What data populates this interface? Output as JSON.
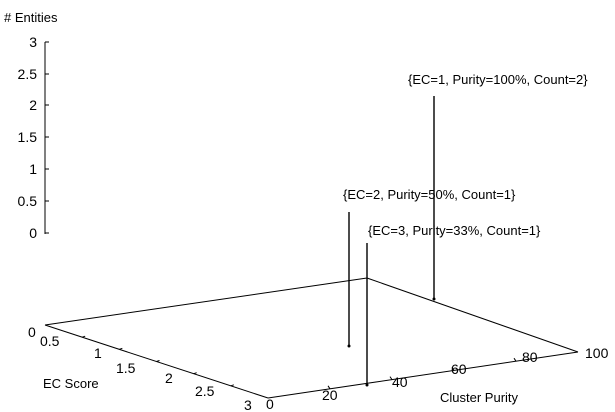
{
  "chart_data": {
    "type": "scatter",
    "subtype": "3d-stem",
    "title": "",
    "zlabel": "# Entities",
    "xlabel": "EC Score",
    "ylabel": "Cluster Purity",
    "xlim": [
      0.5,
      3
    ],
    "ylim": [
      0,
      100
    ],
    "zlim": [
      0,
      3
    ],
    "x_ticks": [
      "0.5",
      "1",
      "1.5",
      "2",
      "2.5",
      "3"
    ],
    "y_ticks": [
      "0",
      "20",
      "40",
      "60",
      "80",
      "100"
    ],
    "z_ticks": [
      "3",
      "2.5",
      "2",
      "1.5",
      "1",
      "0.5",
      "0"
    ],
    "floor_z_label": "0",
    "grid": false,
    "points": [
      {
        "ec": 1,
        "purity": 100,
        "count": 2,
        "label": "{EC=1, Purity=100%, Count=2}"
      },
      {
        "ec": 2,
        "purity": 50,
        "count": 1,
        "label": "{EC=2, Purity=50%, Count=1}"
      },
      {
        "ec": 3,
        "purity": 33,
        "count": 1,
        "label": "{EC=3, Purity=33%, Count=1}"
      }
    ]
  }
}
